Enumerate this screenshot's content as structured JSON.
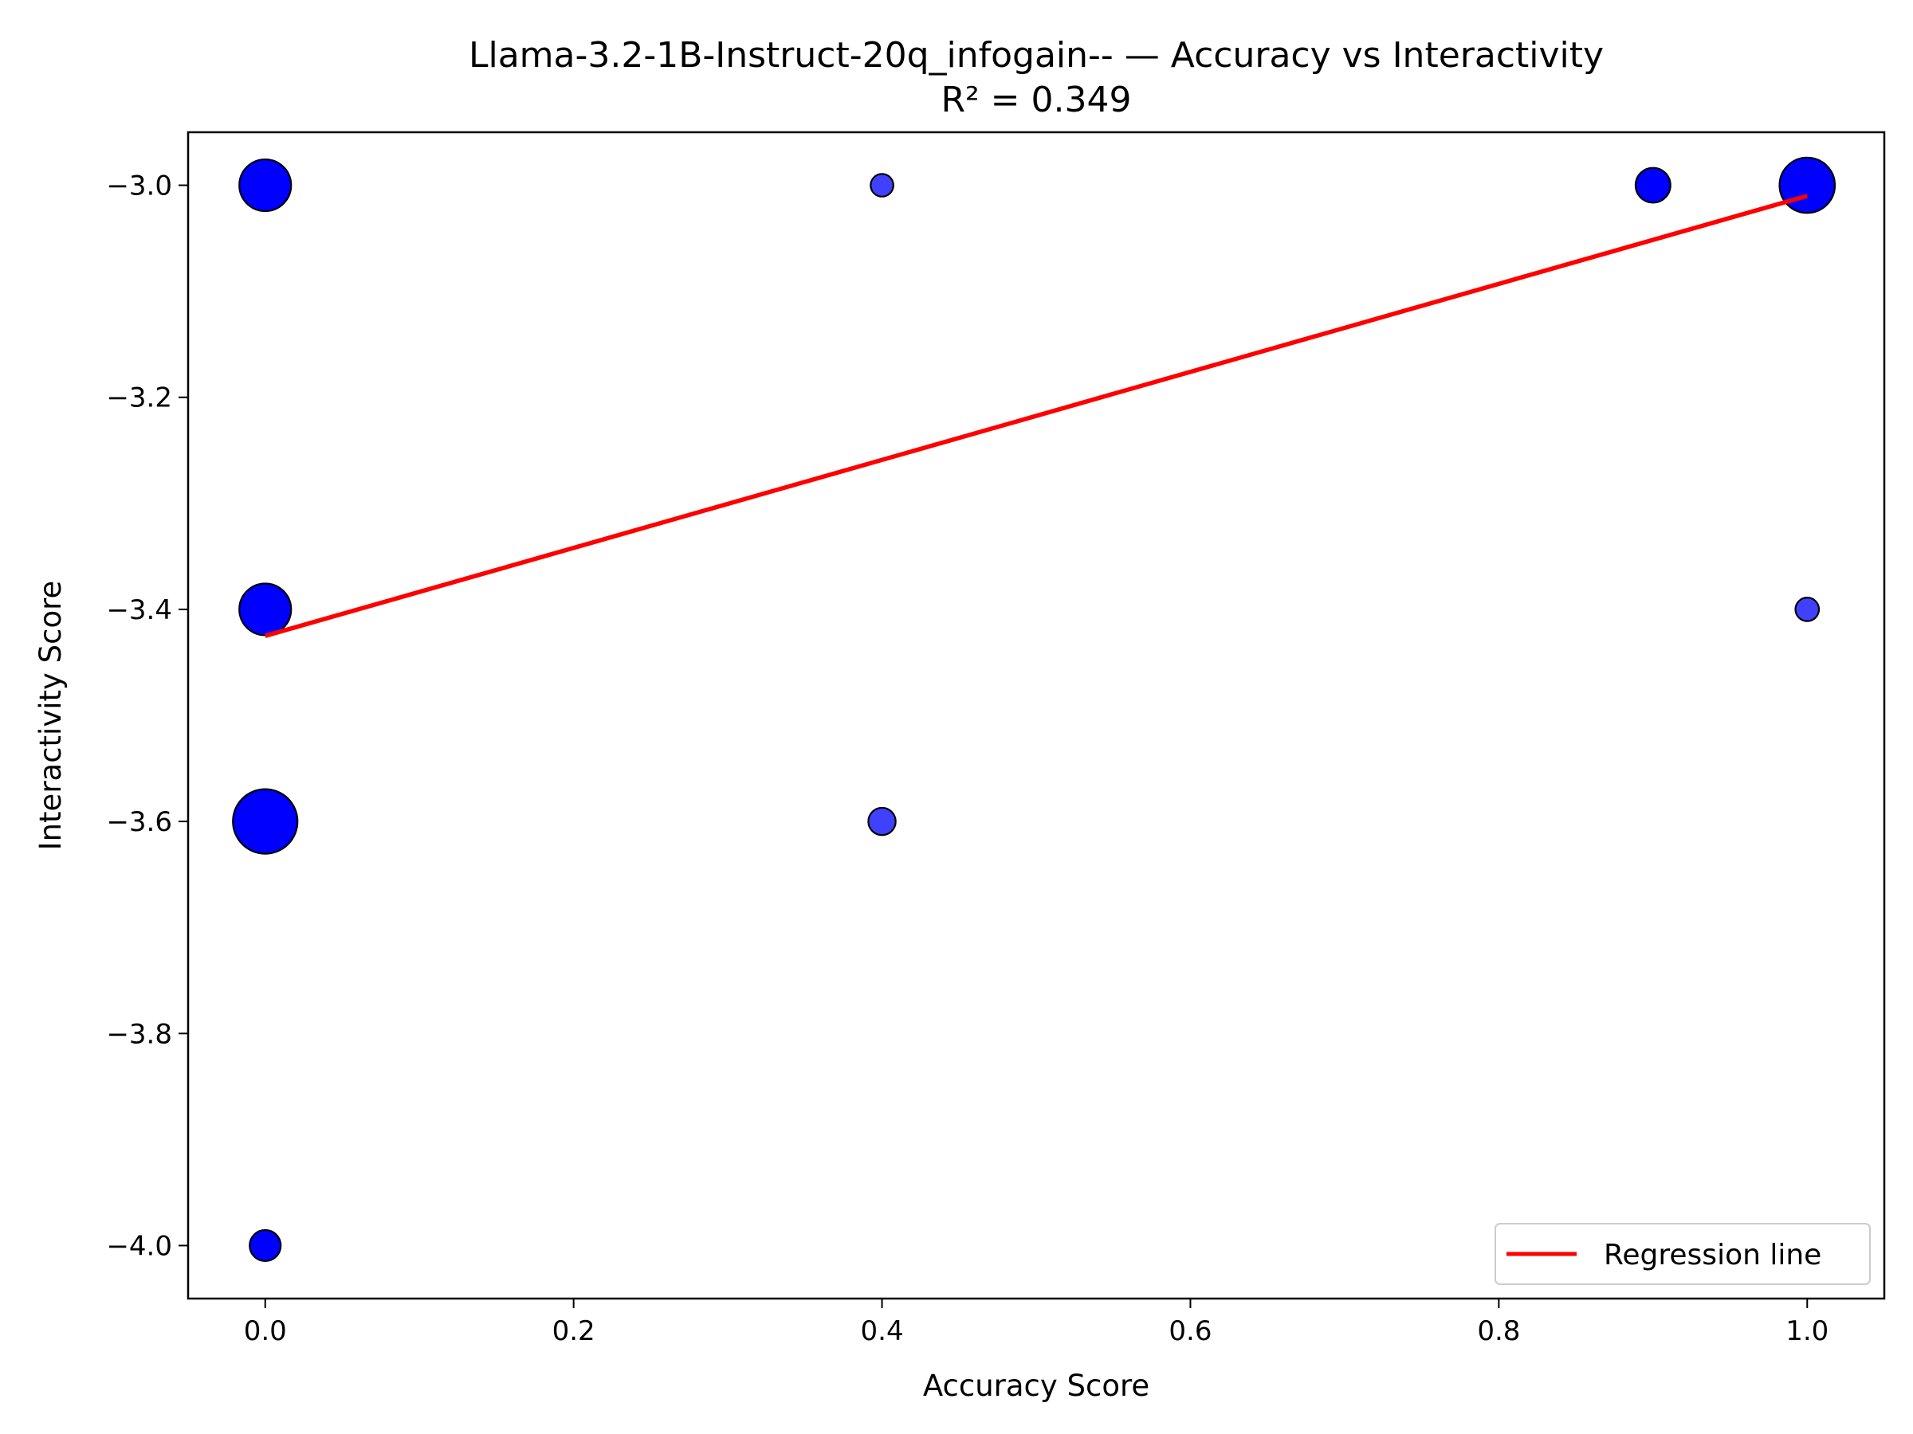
{
  "chart_data": {
    "type": "scatter",
    "title": "Llama-3.2-1B-Instruct-20q_infogain-- — Accuracy vs Interactivity",
    "subtitle": "R² = 0.349",
    "xlabel": "Accuracy Score",
    "ylabel": "Interactivity Score",
    "xlim": [
      -0.05,
      1.05
    ],
    "ylim": [
      -4.05,
      -2.95
    ],
    "xticks": [
      0.0,
      0.2,
      0.4,
      0.6,
      0.8,
      1.0
    ],
    "xtick_labels": [
      "0.0",
      "0.2",
      "0.4",
      "0.6",
      "0.8",
      "1.0"
    ],
    "yticks": [
      -3.0,
      -3.2,
      -3.4,
      -3.6,
      -3.8,
      -4.0
    ],
    "ytick_labels": [
      "−3.0",
      "−3.2",
      "−3.4",
      "−3.6",
      "−3.8",
      "−4.0"
    ],
    "grid": false,
    "legend_position": "lower-right",
    "point_color": "#0000ff",
    "points": [
      {
        "x": 0.0,
        "y": -3.0,
        "size": 5
      },
      {
        "x": 0.0,
        "y": -3.4,
        "size": 5
      },
      {
        "x": 0.0,
        "y": -3.6,
        "size": 9
      },
      {
        "x": 0.0,
        "y": -4.0,
        "size": 1
      },
      {
        "x": 0.4,
        "y": -3.0,
        "size": 0.25
      },
      {
        "x": 0.4,
        "y": -3.6,
        "size": 0.6
      },
      {
        "x": 0.9,
        "y": -3.0,
        "size": 1.5
      },
      {
        "x": 1.0,
        "y": -3.0,
        "size": 6
      },
      {
        "x": 1.0,
        "y": -3.4,
        "size": 0.3
      }
    ],
    "regression": {
      "name": "Regression line",
      "color": "#ff0000",
      "x": [
        0.0,
        1.0
      ],
      "y": [
        -3.425,
        -3.01
      ]
    }
  }
}
